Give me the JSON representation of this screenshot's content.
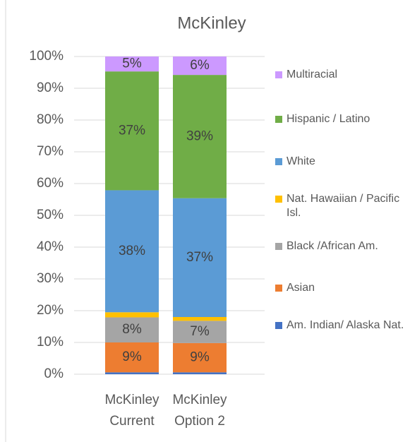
{
  "chart_data": {
    "type": "stacked_bar",
    "title": "McKinley",
    "categories": [
      "McKinley Current",
      "McKinley Option 2"
    ],
    "series": [
      {
        "name": "Am. Indian/ Alaska Nat.",
        "color": "#4472c4",
        "values": [
          0.6,
          0.6
        ],
        "value_labels": [
          null,
          null
        ]
      },
      {
        "name": "Asian",
        "color": "#ed7d31",
        "values": [
          9.4,
          9.2
        ],
        "value_labels": [
          "9%",
          "9%"
        ]
      },
      {
        "name": "Black /African Am.",
        "color": "#a5a5a5",
        "values": [
          7.9,
          7.0
        ],
        "value_labels": [
          "8%",
          "7%"
        ]
      },
      {
        "name": "Nat. Hawaiian / Pacific Isl.",
        "color": "#ffc000",
        "values": [
          1.6,
          1.2
        ],
        "value_labels": [
          null,
          null
        ]
      },
      {
        "name": "White",
        "color": "#5b9bd5",
        "values": [
          38.4,
          37.4
        ],
        "value_labels": [
          "38%",
          "37%"
        ]
      },
      {
        "name": "Hispanic / Latino",
        "color": "#70ad47",
        "values": [
          37.4,
          38.8
        ],
        "value_labels": [
          "37%",
          "39%"
        ]
      },
      {
        "name": "Multiracial",
        "color": "#cc99ff",
        "values": [
          4.7,
          5.8
        ],
        "value_labels": [
          "5%",
          "6%"
        ]
      }
    ],
    "ylim": [
      0,
      100
    ],
    "yticks": [
      {
        "value": 0,
        "label": "0%"
      },
      {
        "value": 10,
        "label": "10%"
      },
      {
        "value": 20,
        "label": "20%"
      },
      {
        "value": 30,
        "label": "30%"
      },
      {
        "value": 40,
        "label": "40%"
      },
      {
        "value": 50,
        "label": "50%"
      },
      {
        "value": 60,
        "label": "60%"
      },
      {
        "value": 70,
        "label": "70%"
      },
      {
        "value": 80,
        "label": "80%"
      },
      {
        "value": 90,
        "label": "90%"
      },
      {
        "value": 100,
        "label": "100%"
      }
    ],
    "grid": true,
    "legend": "right"
  }
}
